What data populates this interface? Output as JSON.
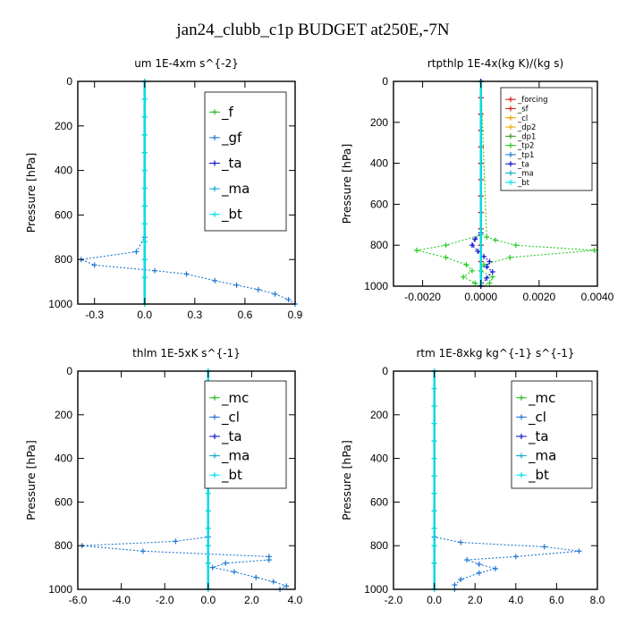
{
  "figure_title": "jan24_clubb_c1p  BUDGET at250E,-7N",
  "colors": {
    "f": "#22bb22",
    "gf": "#1f77d0",
    "ta": "#1010cc",
    "ma": "#11a9cc",
    "bt": "#00e0e8",
    "forcing": "#d11a1a",
    "sf": "#d11a1a",
    "cl": "#e8a400",
    "dp2": "#e0b000",
    "dp1": "#3c9a24",
    "tp2": "#22cc22",
    "tp1": "#1f77d0",
    "mc": "#22bb22"
  },
  "chart_data": [
    {
      "type": "line",
      "title": "um  1E-4xm s^{-2}",
      "ylabel": "Pressure [hPa]",
      "xlim": [
        -0.4,
        0.9
      ],
      "ylim": [
        1000,
        0
      ],
      "xticks": [
        -0.3,
        0.0,
        0.3,
        0.6,
        0.9
      ],
      "xtick_labels": [
        "-0.3",
        "0.0",
        "0.3",
        "0.6",
        "0.9"
      ],
      "yticks": [
        0,
        200,
        400,
        600,
        800,
        1000
      ],
      "ytick_labels": [
        "0",
        "200",
        "400",
        "600",
        "800",
        "1000"
      ],
      "legend_position": "top-right",
      "legend_style": "big",
      "series": [
        {
          "name": "_f",
          "color_key": "f",
          "x": [
            0,
            0,
            0,
            0,
            0,
            0,
            0,
            0,
            0,
            0,
            0,
            0,
            0
          ],
          "y": [
            0,
            80,
            160,
            240,
            320,
            400,
            480,
            560,
            640,
            720,
            800,
            880,
            1000
          ]
        },
        {
          "name": "_gf",
          "color_key": "gf",
          "x": [
            0,
            0,
            -0.05,
            -0.38,
            -0.3,
            0.06,
            0.25,
            0.42,
            0.55,
            0.68,
            0.78,
            0.86,
            0.9
          ],
          "y": [
            0,
            700,
            765,
            800,
            825,
            850,
            865,
            895,
            915,
            935,
            955,
            980,
            1000
          ]
        },
        {
          "name": "_ta",
          "color_key": "ta",
          "x": [
            0,
            0,
            0,
            0,
            0
          ],
          "y": [
            0,
            400,
            800,
            900,
            1000
          ]
        },
        {
          "name": "_ma",
          "color_key": "ma",
          "x": [
            0,
            0,
            0,
            0,
            0
          ],
          "y": [
            0,
            400,
            800,
            900,
            1000
          ]
        },
        {
          "name": "_bt",
          "color_key": "bt",
          "x": [
            0,
            0,
            0,
            0,
            0,
            0,
            0,
            0,
            0,
            0,
            0,
            0,
            0
          ],
          "y": [
            0,
            80,
            160,
            240,
            320,
            400,
            480,
            560,
            640,
            720,
            800,
            880,
            1000
          ]
        }
      ]
    },
    {
      "type": "line",
      "title": "rtpthlp  1E-4x(kg K)/(kg s)",
      "ylabel": "Pressure [hPa]",
      "xlim": [
        -0.003,
        0.004
      ],
      "ylim": [
        1000,
        0
      ],
      "xticks": [
        -0.002,
        0.0,
        0.002,
        0.004
      ],
      "xtick_labels": [
        "-0.0020",
        "0.0000",
        "0.0020",
        "0.0040"
      ],
      "yticks": [
        0,
        200,
        400,
        600,
        800,
        1000
      ],
      "ytick_labels": [
        "0",
        "200",
        "400",
        "600",
        "800",
        "1000"
      ],
      "legend_position": "top-right",
      "legend_style": "small",
      "series": [
        {
          "name": "_forcing",
          "color_key": "forcing",
          "x": [
            0,
            0,
            0,
            0,
            0,
            0,
            0,
            0,
            0,
            0,
            0,
            0,
            0
          ],
          "y": [
            0,
            80,
            160,
            240,
            320,
            400,
            480,
            560,
            640,
            720,
            800,
            880,
            1000
          ]
        },
        {
          "name": "_sf",
          "color_key": "sf",
          "x": [
            0,
            0,
            0,
            0,
            0,
            0,
            0,
            0,
            0,
            0,
            0,
            0,
            0
          ],
          "y": [
            0,
            80,
            160,
            240,
            320,
            400,
            480,
            560,
            640,
            720,
            800,
            880,
            1000
          ]
        },
        {
          "name": "_cl",
          "color_key": "cl",
          "x": [
            0,
            0,
            0,
            0,
            0
          ],
          "y": [
            0,
            400,
            800,
            900,
            1000
          ]
        },
        {
          "name": "_dp2",
          "color_key": "dp2",
          "x": [
            0,
            0,
            0,
            0,
            0
          ],
          "y": [
            0,
            400,
            800,
            900,
            1000
          ]
        },
        {
          "name": "_dp1",
          "color_key": "dp1",
          "x": [
            0,
            0,
            0,
            0,
            0
          ],
          "y": [
            0,
            400,
            800,
            900,
            1000
          ]
        },
        {
          "name": "_tp2",
          "color_key": "tp2",
          "x": [
            0,
            0,
            -0.0012,
            -0.0022,
            -0.0012,
            -0.0005,
            -0.0003,
            -0.0006,
            -0.0002,
            0.0,
            0.0003,
            0.0004,
            0.0,
            0.0001,
            0.001,
            0.0039,
            0.0012,
            0.0005,
            0.0002,
            0.0
          ],
          "y": [
            0,
            750,
            800,
            825,
            860,
            895,
            925,
            955,
            985,
            1000,
            985,
            955,
            925,
            895,
            860,
            825,
            800,
            775,
            760,
            0
          ]
        },
        {
          "name": "_tp1",
          "color_key": "tp1",
          "x": [
            0,
            0,
            0,
            0,
            0
          ],
          "y": [
            0,
            400,
            800,
            900,
            1000
          ]
        },
        {
          "name": "_ta",
          "color_key": "ta",
          "x": [
            0,
            0,
            -0.0002,
            -0.0003,
            -0.0001,
            0.0001,
            0.0003,
            0.0002,
            0.0004,
            0.0002,
            0.0
          ],
          "y": [
            0,
            740,
            770,
            800,
            830,
            855,
            880,
            905,
            930,
            960,
            1000
          ]
        },
        {
          "name": "_ma",
          "color_key": "ma",
          "x": [
            0,
            0,
            0,
            0,
            0
          ],
          "y": [
            0,
            400,
            800,
            900,
            1000
          ]
        },
        {
          "name": "_bt",
          "color_key": "bt",
          "x": [
            0,
            0,
            0,
            0,
            0
          ],
          "y": [
            0,
            400,
            800,
            900,
            1000
          ]
        }
      ]
    },
    {
      "type": "line",
      "title": "thlm  1E-5xK s^{-1}",
      "ylabel": "Pressure [hPa]",
      "xlim": [
        -6.0,
        4.0
      ],
      "ylim": [
        1000,
        0
      ],
      "xticks": [
        -6.0,
        -4.0,
        -2.0,
        0.0,
        2.0,
        4.0
      ],
      "xtick_labels": [
        "-6.0",
        "-4.0",
        "-2.0",
        "0.0",
        "2.0",
        "4.0"
      ],
      "yticks": [
        0,
        200,
        400,
        600,
        800,
        1000
      ],
      "ytick_labels": [
        "0",
        "200",
        "400",
        "600",
        "800",
        "1000"
      ],
      "legend_position": "top-right",
      "legend_style": "big",
      "series": [
        {
          "name": "_mc",
          "color_key": "mc",
          "x": [
            0,
            0,
            0,
            0,
            0,
            0,
            0,
            0,
            0,
            0,
            0,
            0,
            0
          ],
          "y": [
            0,
            80,
            160,
            240,
            320,
            400,
            480,
            560,
            640,
            720,
            800,
            880,
            1000
          ]
        },
        {
          "name": "_cl",
          "color_key": "gf",
          "x": [
            0,
            0,
            -1.5,
            -5.8,
            -3.0,
            2.8,
            2.8,
            0.8,
            0.2,
            1.2,
            2.2,
            3.0,
            3.6,
            3.3
          ],
          "y": [
            0,
            760,
            780,
            800,
            825,
            850,
            865,
            880,
            900,
            920,
            945,
            965,
            985,
            1000
          ]
        },
        {
          "name": "_ta",
          "color_key": "ta",
          "x": [
            0,
            0,
            0,
            0,
            0
          ],
          "y": [
            0,
            400,
            800,
            900,
            1000
          ]
        },
        {
          "name": "_ma",
          "color_key": "ma",
          "x": [
            0,
            0,
            0,
            0,
            0
          ],
          "y": [
            0,
            400,
            800,
            900,
            1000
          ]
        },
        {
          "name": "_bt",
          "color_key": "bt",
          "x": [
            0,
            0,
            0,
            0,
            0,
            0,
            0,
            0,
            0,
            0,
            0,
            0,
            0
          ],
          "y": [
            0,
            80,
            160,
            240,
            320,
            400,
            480,
            560,
            640,
            720,
            800,
            880,
            1000
          ]
        }
      ]
    },
    {
      "type": "line",
      "title": "rtm  1E-8xkg kg^{-1} s^{-1}",
      "ylabel": "Pressure [hPa]",
      "xlim": [
        -2.0,
        8.0
      ],
      "ylim": [
        1000,
        0
      ],
      "xticks": [
        -2.0,
        0.0,
        2.0,
        4.0,
        6.0,
        8.0
      ],
      "xtick_labels": [
        "-2.0",
        "0.0",
        "2.0",
        "4.0",
        "6.0",
        "8.0"
      ],
      "yticks": [
        0,
        200,
        400,
        600,
        800,
        1000
      ],
      "ytick_labels": [
        "0",
        "200",
        "400",
        "600",
        "800",
        "1000"
      ],
      "legend_position": "top-right",
      "legend_style": "big",
      "series": [
        {
          "name": "_mc",
          "color_key": "mc",
          "x": [
            0,
            0,
            0,
            0,
            0,
            0,
            0,
            0,
            0,
            0,
            0,
            0,
            0
          ],
          "y": [
            0,
            80,
            160,
            240,
            320,
            400,
            480,
            560,
            640,
            720,
            800,
            880,
            1000
          ]
        },
        {
          "name": "_cl",
          "color_key": "gf",
          "x": [
            0,
            0,
            1.3,
            5.4,
            7.1,
            4.0,
            1.6,
            2.2,
            3.0,
            2.2,
            1.3,
            1.0,
            1.0
          ],
          "y": [
            0,
            760,
            785,
            805,
            825,
            850,
            865,
            885,
            905,
            925,
            955,
            980,
            1000
          ]
        },
        {
          "name": "_ta",
          "color_key": "ta",
          "x": [
            0,
            0,
            0,
            0,
            0
          ],
          "y": [
            0,
            400,
            800,
            900,
            1000
          ]
        },
        {
          "name": "_ma",
          "color_key": "ma",
          "x": [
            0,
            0,
            0,
            0,
            0
          ],
          "y": [
            0,
            400,
            800,
            900,
            1000
          ]
        },
        {
          "name": "_bt",
          "color_key": "bt",
          "x": [
            0,
            0,
            0,
            0,
            0,
            0,
            0,
            0,
            0,
            0,
            0,
            0,
            0
          ],
          "y": [
            0,
            80,
            160,
            240,
            320,
            400,
            480,
            560,
            640,
            720,
            800,
            880,
            1000
          ]
        }
      ]
    }
  ]
}
